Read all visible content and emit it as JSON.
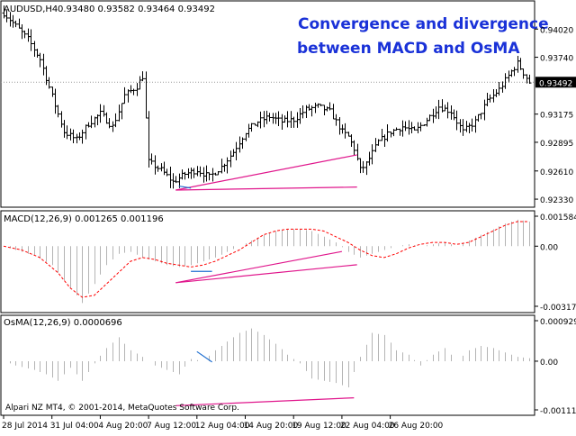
{
  "colors": {
    "background": "#ffffff",
    "frame": "#000000",
    "bar": "#000000",
    "histogram": "#b4b4b4",
    "signal": "#ff0000",
    "divergence": "#e0168c",
    "convergence": "#1f6fd0",
    "annotation": "#1a32d8",
    "price_tag_bg": "#000000",
    "price_tag_fg": "#ffffff"
  },
  "annotation": {
    "line1": "Convergence and divergence",
    "line2": "between MACD and OsMA"
  },
  "copyright": "Alpari NZ MT4, © 2001-2014, MetaQuotes Software Corp.",
  "chart_data": [
    {
      "panel": "price",
      "type": "ohlc-bar",
      "header": {
        "symbol_tf": "AUDUSD,H4",
        "ohlc": "0.93480 0.93582 0.93464 0.93492"
      },
      "ylim": [
        0.9225,
        0.943
      ],
      "y_ticks": [
        "0.94020",
        "0.93740",
        "0.93175",
        "0.92895",
        "0.92610",
        "0.92330"
      ],
      "current_price_label": "0.93492",
      "current_price": 0.93492,
      "close_path": [
        [
          0,
          0.9418
        ],
        [
          4,
          0.9405
        ],
        [
          8,
          0.9392
        ],
        [
          12,
          0.9372
        ],
        [
          16,
          0.9335
        ],
        [
          20,
          0.93
        ],
        [
          24,
          0.9292
        ],
        [
          28,
          0.9308
        ],
        [
          32,
          0.9318
        ],
        [
          36,
          0.9305
        ],
        [
          40,
          0.9336
        ],
        [
          44,
          0.9345
        ],
        [
          46,
          0.9355
        ],
        [
          48,
          0.927
        ],
        [
          52,
          0.9262
        ],
        [
          56,
          0.925
        ],
        [
          60,
          0.9258
        ],
        [
          64,
          0.9262
        ],
        [
          68,
          0.9255
        ],
        [
          72,
          0.9265
        ],
        [
          76,
          0.928
        ],
        [
          80,
          0.93
        ],
        [
          84,
          0.931
        ],
        [
          88,
          0.9315
        ],
        [
          92,
          0.931
        ],
        [
          96,
          0.9312
        ],
        [
          100,
          0.9322
        ],
        [
          104,
          0.9325
        ],
        [
          108,
          0.932
        ],
        [
          112,
          0.93
        ],
        [
          114,
          0.9295
        ],
        [
          116,
          0.9283
        ],
        [
          118,
          0.9262
        ],
        [
          120,
          0.9268
        ],
        [
          124,
          0.929
        ],
        [
          128,
          0.93
        ],
        [
          132,
          0.9305
        ],
        [
          136,
          0.93
        ],
        [
          140,
          0.9312
        ],
        [
          144,
          0.9325
        ],
        [
          148,
          0.932
        ],
        [
          152,
          0.93
        ],
        [
          156,
          0.931
        ],
        [
          160,
          0.933
        ],
        [
          164,
          0.9342
        ],
        [
          168,
          0.936
        ],
        [
          170,
          0.9368
        ],
        [
          174,
          0.9349
        ]
      ],
      "bar_count": 175,
      "divergence_lines": [
        {
          "from": [
            57,
            0.9242
          ],
          "to": [
            117,
            0.9277
          ],
          "color": "divergence"
        },
        {
          "from": [
            57,
            0.9242
          ],
          "to": [
            117,
            0.9245
          ],
          "color": "divergence"
        },
        {
          "from": [
            58,
            0.9246
          ],
          "to": [
            62,
            0.9244
          ],
          "color": "convergence"
        }
      ]
    },
    {
      "panel": "macd",
      "type": "histogram+line",
      "header": "MACD(12,26,9) 0.001265 0.001196",
      "ylim": [
        -0.003175,
        0.001584
      ],
      "y_ticks": [
        "0.001584",
        "0.00",
        "-0.003175"
      ],
      "series": [
        {
          "type": "histogram",
          "color_key": "histogram",
          "path": [
            [
              0,
              0.0
            ],
            [
              4,
              -0.0002
            ],
            [
              10,
              -0.0005
            ],
            [
              16,
              -0.001
            ],
            [
              22,
              -0.0022
            ],
            [
              26,
              -0.003
            ],
            [
              30,
              -0.002
            ],
            [
              34,
              -0.001
            ],
            [
              38,
              -0.0004
            ],
            [
              42,
              -0.0003
            ],
            [
              46,
              -0.0006
            ],
            [
              50,
              -0.0008
            ],
            [
              54,
              -0.001
            ],
            [
              58,
              -0.0011
            ],
            [
              62,
              -0.001
            ],
            [
              66,
              -0.0008
            ],
            [
              70,
              -0.0006
            ],
            [
              74,
              -0.0003
            ],
            [
              78,
              -0.0
            ],
            [
              82,
              0.0003
            ],
            [
              86,
              0.0006
            ],
            [
              90,
              0.0008
            ],
            [
              94,
              0.0009
            ],
            [
              98,
              0.0009
            ],
            [
              102,
              0.0008
            ],
            [
              106,
              0.0005
            ],
            [
              110,
              0.0002
            ],
            [
              114,
              -0.0003
            ],
            [
              118,
              -0.0006
            ],
            [
              122,
              -0.0004
            ],
            [
              126,
              -0.0002
            ],
            [
              130,
              -0.0
            ],
            [
              134,
              0.0001
            ],
            [
              138,
              0.0
            ],
            [
              142,
              0.0001
            ],
            [
              146,
              0.0002
            ],
            [
              150,
              0.0
            ],
            [
              154,
              0.0003
            ],
            [
              158,
              0.0006
            ],
            [
              162,
              0.0009
            ],
            [
              166,
              0.0012
            ],
            [
              170,
              0.0014
            ],
            [
              174,
              0.0013
            ]
          ]
        },
        {
          "type": "line",
          "style": "dashed",
          "color_key": "signal",
          "path": [
            [
              0,
              0.0
            ],
            [
              6,
              -0.0002
            ],
            [
              12,
              -0.0006
            ],
            [
              18,
              -0.0014
            ],
            [
              22,
              -0.0022
            ],
            [
              26,
              -0.0027
            ],
            [
              30,
              -0.0026
            ],
            [
              34,
              -0.002
            ],
            [
              38,
              -0.0014
            ],
            [
              42,
              -0.0008
            ],
            [
              46,
              -0.0006
            ],
            [
              50,
              -0.0007
            ],
            [
              54,
              -0.0009
            ],
            [
              58,
              -0.001
            ],
            [
              62,
              -0.0011
            ],
            [
              66,
              -0.001
            ],
            [
              70,
              -0.0008
            ],
            [
              74,
              -0.0005
            ],
            [
              78,
              -0.0002
            ],
            [
              82,
              0.0002
            ],
            [
              86,
              0.0006
            ],
            [
              90,
              0.0008
            ],
            [
              94,
              0.0009
            ],
            [
              98,
              0.0009
            ],
            [
              102,
              0.0009
            ],
            [
              106,
              0.0008
            ],
            [
              110,
              0.0005
            ],
            [
              114,
              0.0002
            ],
            [
              118,
              -0.0002
            ],
            [
              122,
              -0.0005
            ],
            [
              126,
              -0.0006
            ],
            [
              130,
              -0.0004
            ],
            [
              134,
              -0.0001
            ],
            [
              138,
              0.0001
            ],
            [
              142,
              0.0002
            ],
            [
              146,
              0.0002
            ],
            [
              150,
              0.0001
            ],
            [
              154,
              0.0002
            ],
            [
              158,
              0.0005
            ],
            [
              162,
              0.0008
            ],
            [
              166,
              0.0011
            ],
            [
              170,
              0.0013
            ],
            [
              174,
              0.0013
            ]
          ]
        }
      ],
      "divergence_lines": [
        {
          "from": [
            57,
            -0.00193
          ],
          "to": [
            112,
            -0.00028
          ],
          "color": "divergence"
        },
        {
          "from": [
            57,
            -0.00193
          ],
          "to": [
            117,
            -0.00098
          ],
          "color": "divergence"
        },
        {
          "from": [
            62,
            -0.00133
          ],
          "to": [
            69,
            -0.00133
          ],
          "color": "convergence"
        }
      ]
    },
    {
      "panel": "osma",
      "type": "histogram",
      "header": "OsMA(12,26,9) 0.0000696",
      "ylim": [
        -0.001117,
        0.000929
      ],
      "y_ticks": [
        "0.000929",
        "0.00",
        "-0.001117"
      ],
      "series": [
        {
          "type": "histogram",
          "color_key": "histogram",
          "path": [
            [
              0,
              0.0
            ],
            [
              4,
              -0.0001
            ],
            [
              10,
              -0.0002
            ],
            [
              14,
              -0.0003
            ],
            [
              18,
              -0.00045
            ],
            [
              22,
              -0.00015
            ],
            [
              26,
              -0.00045
            ],
            [
              30,
              -5e-05
            ],
            [
              34,
              0.0003
            ],
            [
              38,
              0.00055
            ],
            [
              42,
              0.00025
            ],
            [
              46,
              0.0001
            ],
            [
              50,
              -0.0001
            ],
            [
              54,
              -0.0002
            ],
            [
              58,
              -0.0003
            ],
            [
              62,
              5e-05
            ],
            [
              66,
              0.0
            ],
            [
              70,
              0.00025
            ],
            [
              74,
              0.00045
            ],
            [
              78,
              0.00065
            ],
            [
              82,
              0.00075
            ],
            [
              86,
              0.0006
            ],
            [
              90,
              0.0004
            ],
            [
              94,
              0.00015
            ],
            [
              98,
              -5e-05
            ],
            [
              102,
              -0.0004
            ],
            [
              106,
              -0.00045
            ],
            [
              110,
              -0.0005
            ],
            [
              114,
              -0.0006
            ],
            [
              118,
              0.0001
            ],
            [
              122,
              0.00065
            ],
            [
              126,
              0.0006
            ],
            [
              130,
              0.00025
            ],
            [
              134,
              0.00015
            ],
            [
              138,
              -0.0001
            ],
            [
              142,
              0.00015
            ],
            [
              146,
              0.0003
            ],
            [
              150,
              0.0
            ],
            [
              154,
              0.00025
            ],
            [
              158,
              0.00035
            ],
            [
              162,
              0.0003
            ],
            [
              166,
              0.0002
            ],
            [
              170,
              0.0001
            ],
            [
              174,
              7e-05
            ]
          ]
        }
      ],
      "divergence_lines": [
        {
          "from": [
            57,
            -0.00102
          ],
          "to": [
            116,
            -0.00084
          ],
          "color": "divergence"
        },
        {
          "from": [
            64,
            0.00022
          ],
          "to": [
            69,
            -2e-05
          ],
          "color": "convergence"
        }
      ]
    }
  ],
  "x_axis": {
    "tick_labels": [
      "28 Jul 2014",
      "31 Jul 04:00",
      "4 Aug 20:00",
      "7 Aug 12:00",
      "12 Aug 04:00",
      "14 Aug 20:00",
      "19 Aug 12:00",
      "22 Aug 04:00",
      "26 Aug 20:00"
    ],
    "tick_bar_index": [
      0,
      16,
      32,
      48,
      64,
      80,
      96,
      112,
      128
    ]
  }
}
